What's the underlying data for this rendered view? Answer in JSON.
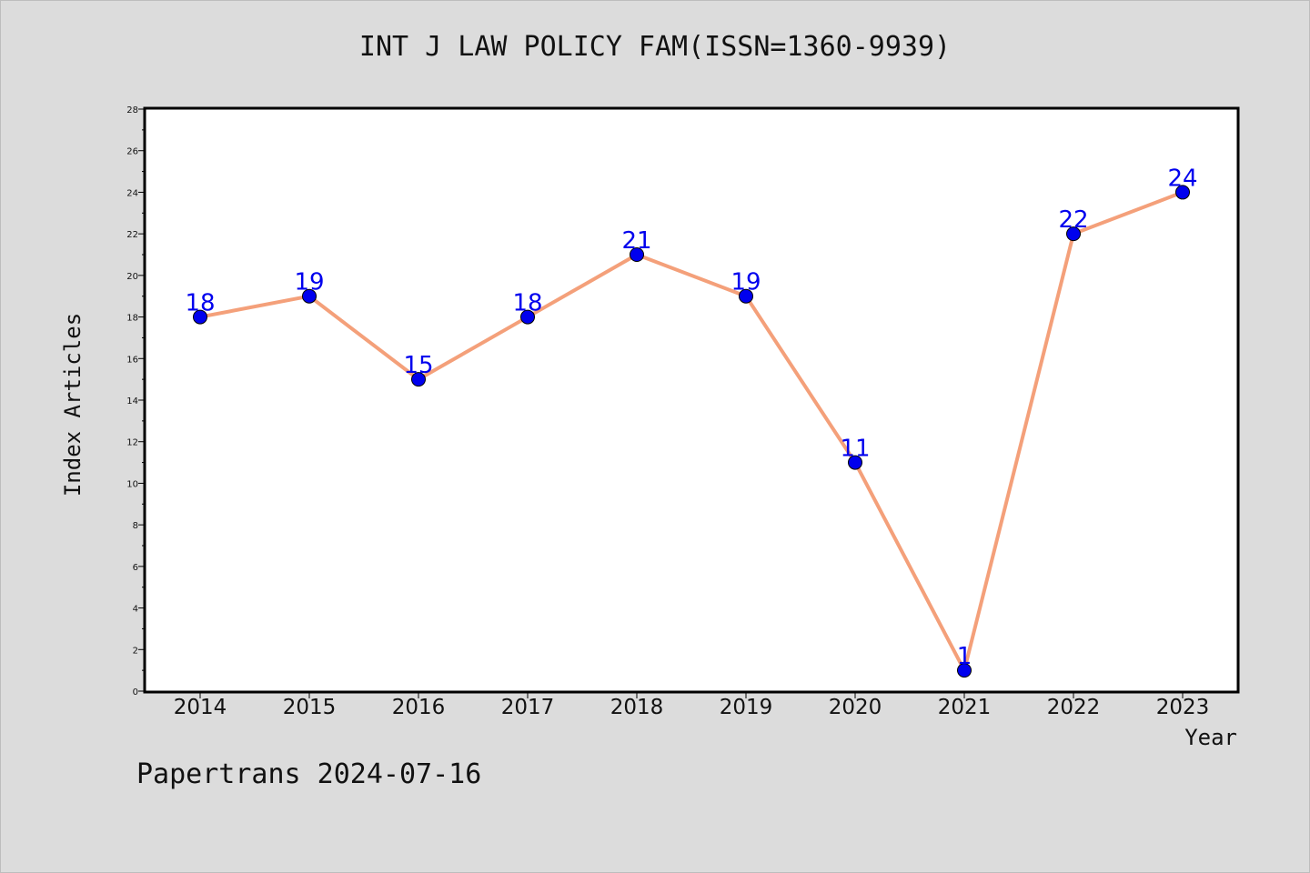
{
  "chart_data": {
    "type": "line",
    "title": "INT J LAW POLICY FAM(ISSN=1360-9939)",
    "xlabel": "Year",
    "ylabel": "Index Articles",
    "x": [
      "2014",
      "2015",
      "2016",
      "2017",
      "2018",
      "2019",
      "2020",
      "2021",
      "2022",
      "2023"
    ],
    "values": [
      18,
      19,
      15,
      18,
      21,
      19,
      11,
      1,
      22,
      24
    ],
    "ylim": [
      0,
      28
    ],
    "yticks": [
      0,
      2,
      4,
      6,
      8,
      10,
      12,
      14,
      16,
      18,
      20,
      22,
      24,
      26,
      28
    ],
    "grid": false,
    "line_color": "#f4a07a",
    "marker_color": "#0000ee",
    "label_color": "#0000ee"
  },
  "footer": "Papertrans 2024-07-16"
}
